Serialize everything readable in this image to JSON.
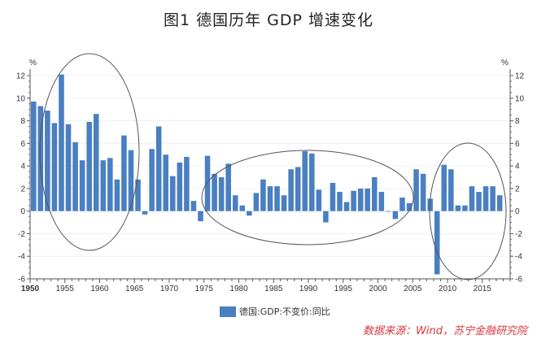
{
  "chart_data": {
    "type": "bar",
    "title": "图1 德国历年 GDP 增速变化",
    "xlabel": "",
    "ylabel": "%",
    "ylabel_right": "%",
    "xlim": [
      1950,
      2019
    ],
    "ylim": [
      -6,
      12
    ],
    "yticks": [
      -6,
      -4,
      -2,
      0,
      2,
      4,
      6,
      8,
      10,
      12
    ],
    "xticks": [
      1950,
      1955,
      1960,
      1965,
      1970,
      1975,
      1980,
      1985,
      1990,
      1995,
      2000,
      2005,
      2010,
      2015
    ],
    "grid": true,
    "legend_position": "bottom",
    "bar_color": "#4a7fc1",
    "series": [
      {
        "name": "德国:GDP:不变价:同比",
        "x": [
          1950,
          1951,
          1952,
          1953,
          1954,
          1955,
          1956,
          1957,
          1958,
          1959,
          1960,
          1961,
          1962,
          1963,
          1964,
          1965,
          1966,
          1967,
          1968,
          1969,
          1970,
          1971,
          1972,
          1973,
          1974,
          1975,
          1976,
          1977,
          1978,
          1979,
          1980,
          1981,
          1982,
          1983,
          1984,
          1985,
          1986,
          1987,
          1988,
          1989,
          1990,
          1991,
          1992,
          1993,
          1994,
          1995,
          1996,
          1997,
          1998,
          1999,
          2000,
          2001,
          2002,
          2003,
          2004,
          2005,
          2006,
          2007,
          2008,
          2009,
          2010,
          2011,
          2012,
          2013,
          2014,
          2015,
          2016,
          2017
        ],
        "values": [
          9.7,
          9.3,
          8.9,
          7.8,
          12.1,
          7.7,
          6.1,
          4.5,
          7.9,
          8.6,
          4.5,
          4.7,
          2.8,
          6.7,
          5.4,
          2.8,
          -0.3,
          5.5,
          7.5,
          5.0,
          3.1,
          4.3,
          4.8,
          0.9,
          -0.9,
          4.9,
          3.3,
          3.0,
          4.2,
          1.4,
          0.5,
          -0.4,
          1.6,
          2.8,
          2.2,
          2.2,
          1.4,
          3.7,
          3.9,
          5.3,
          5.1,
          1.9,
          -1.0,
          2.5,
          1.7,
          0.8,
          1.8,
          2.0,
          2.0,
          3.0,
          1.7,
          0.0,
          -0.7,
          1.2,
          0.7,
          3.7,
          3.3,
          1.1,
          -5.6,
          4.1,
          3.7,
          0.5,
          0.5,
          2.2,
          1.7,
          2.2,
          2.2,
          1.4
        ]
      }
    ]
  },
  "source": "数据来源：Wind，苏宁金融研究院"
}
